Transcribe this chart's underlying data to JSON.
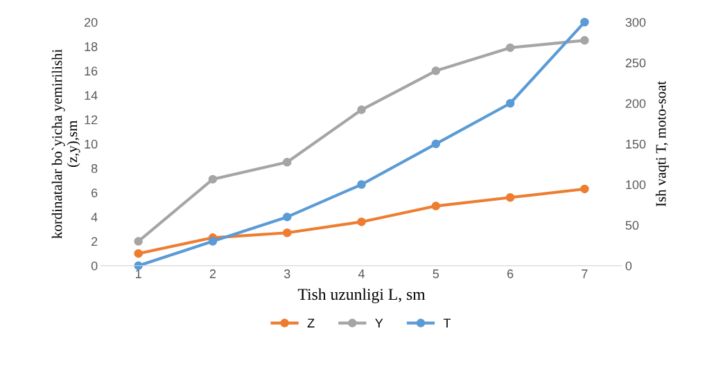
{
  "chart_data": {
    "type": "line",
    "xlabel": "Tish uzunligi L, sm",
    "ylabel": "kordinatalar bo`yicha yemirilishi\n(z,y),sm",
    "y2label": "Ish vaqti T, moto-soat",
    "categories": [
      "1",
      "2",
      "3",
      "4",
      "5",
      "6",
      "7"
    ],
    "series": [
      {
        "name": "Z",
        "color": "#ed7d31",
        "values": [
          1.0,
          2.3,
          2.7,
          3.6,
          4.9,
          5.6,
          6.3
        ]
      },
      {
        "name": "Y",
        "color": "#a5a5a5",
        "values": [
          2.0,
          7.1,
          8.5,
          12.8,
          16.0,
          17.9,
          18.5
        ]
      },
      {
        "name": "T",
        "color": "#5b9bd5",
        "axis": "y2",
        "values": [
          0,
          30,
          60,
          100,
          150,
          200,
          300
        ]
      }
    ],
    "ylim": [
      0,
      20
    ],
    "yticks": [
      0,
      2,
      4,
      6,
      8,
      10,
      12,
      14,
      16,
      18,
      20
    ],
    "y2lim": [
      0,
      300
    ],
    "y2ticks": [
      0,
      50,
      100,
      150,
      200,
      250,
      300
    ],
    "grid": false,
    "legend": "bottom",
    "marker": "circle",
    "line_style": "solid"
  }
}
